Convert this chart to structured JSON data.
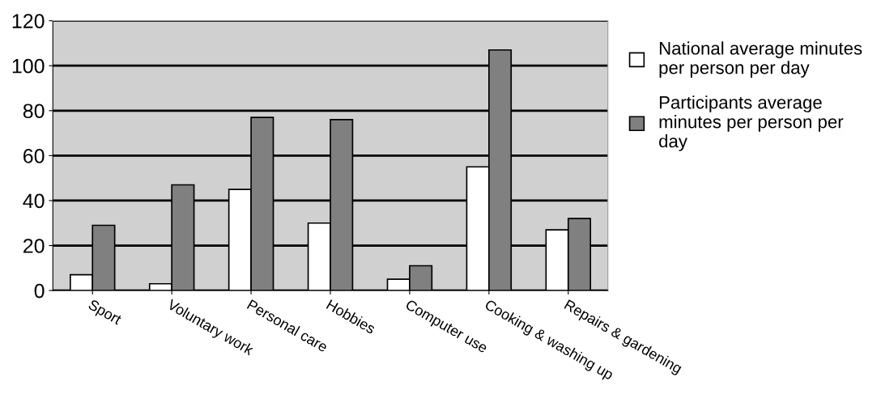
{
  "chart_data": {
    "type": "bar",
    "categories": [
      "Sport",
      "Voluntary work",
      "Personal care",
      "Hobbies",
      "Computer use",
      "Cooking & washing up",
      "Repairs & gardening"
    ],
    "series": [
      {
        "name": "National average minutes per person per day",
        "color": "#ffffff",
        "values": [
          7,
          3,
          45,
          30,
          5,
          55,
          27
        ]
      },
      {
        "name": "Participants average minutes per person per day",
        "color": "#808080",
        "values": [
          29,
          47,
          77,
          76,
          11,
          107,
          32
        ]
      }
    ],
    "ylim": [
      0,
      120
    ],
    "yticks": [
      0,
      20,
      40,
      60,
      80,
      100,
      120
    ],
    "grid": "y",
    "legend": "right"
  }
}
